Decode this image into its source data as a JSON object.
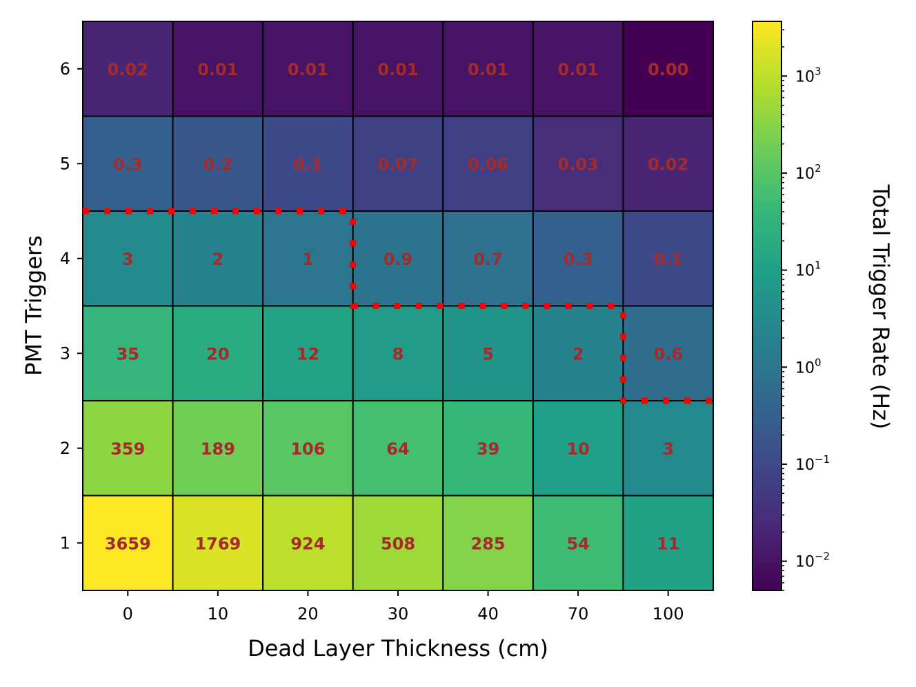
{
  "chart_data": {
    "type": "heatmap",
    "title": "",
    "xlabel": "Dead Layer Thickness (cm)",
    "ylabel": "PMT Triggers",
    "x_categories": [
      "0",
      "10",
      "20",
      "30",
      "40",
      "70",
      "100"
    ],
    "y_categories": [
      "1",
      "2",
      "3",
      "4",
      "5",
      "6"
    ],
    "values": [
      [
        3659,
        1769,
        924,
        508,
        285,
        54,
        11
      ],
      [
        359,
        189,
        106,
        64,
        39,
        10,
        3
      ],
      [
        35,
        20,
        12,
        8,
        5,
        2,
        0.6
      ],
      [
        3,
        2,
        1,
        0.9,
        0.7,
        0.3,
        0.1
      ],
      [
        0.3,
        0.2,
        0.1,
        0.07,
        0.06,
        0.03,
        0.02
      ],
      [
        0.02,
        0.01,
        0.01,
        0.01,
        0.01,
        0.01,
        0.0
      ]
    ],
    "labels": [
      [
        "3659",
        "1769",
        "924",
        "508",
        "285",
        "54",
        "11"
      ],
      [
        "359",
        "189",
        "106",
        "64",
        "39",
        "10",
        "3"
      ],
      [
        "35",
        "20",
        "12",
        "8",
        "5",
        "2",
        "0.6"
      ],
      [
        "3",
        "2",
        "1",
        "0.9",
        "0.7",
        "0.3",
        "0.1"
      ],
      [
        "0.3",
        "0.2",
        "0.1",
        "0.07",
        "0.06",
        "0.03",
        "0.02"
      ],
      [
        "0.02",
        "0.01",
        "0.01",
        "0.01",
        "0.01",
        "0.01",
        "0.00"
      ]
    ],
    "colorbar": {
      "label": "Total Trigger Rate (Hz)",
      "scale": "log",
      "colormap": "viridis",
      "range": [
        0.005,
        3659
      ],
      "ticks": [
        {
          "base": "10",
          "exp": "−2",
          "value": 0.01
        },
        {
          "base": "10",
          "exp": "−1",
          "value": 0.1
        },
        {
          "base": "10",
          "exp": "0",
          "value": 1
        },
        {
          "base": "10",
          "exp": "1",
          "value": 10
        },
        {
          "base": "10",
          "exp": "2",
          "value": 100
        },
        {
          "base": "10",
          "exp": "3",
          "value": 1000
        }
      ]
    },
    "threshold_boundary": {
      "color": "#ff0000",
      "style": "dotted",
      "row_boundary_per_column": [
        4,
        4,
        4,
        3,
        3,
        3,
        2
      ]
    },
    "cell_label_color": "#a52a2a",
    "grid": false
  }
}
